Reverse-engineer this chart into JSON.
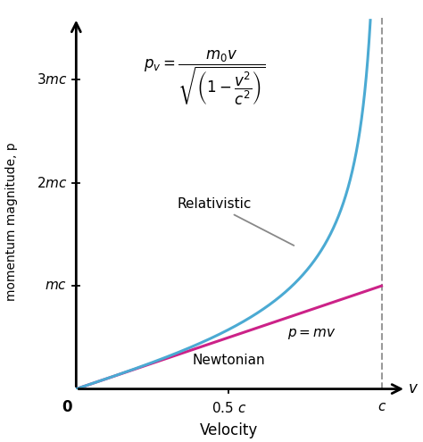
{
  "xlabel": "Velocity",
  "ylabel": "momentum magnitude, p",
  "xlim": [
    0,
    1.08
  ],
  "ylim": [
    0,
    3.6
  ],
  "c_line_x": 1.0,
  "relativistic_color": "#4BAAD3",
  "newtonian_color": "#CC2288",
  "dashed_line_color": "#999999",
  "background_color": "#ffffff",
  "label_relativistic": "Relativistic",
  "label_newtonian": "Newtonian"
}
